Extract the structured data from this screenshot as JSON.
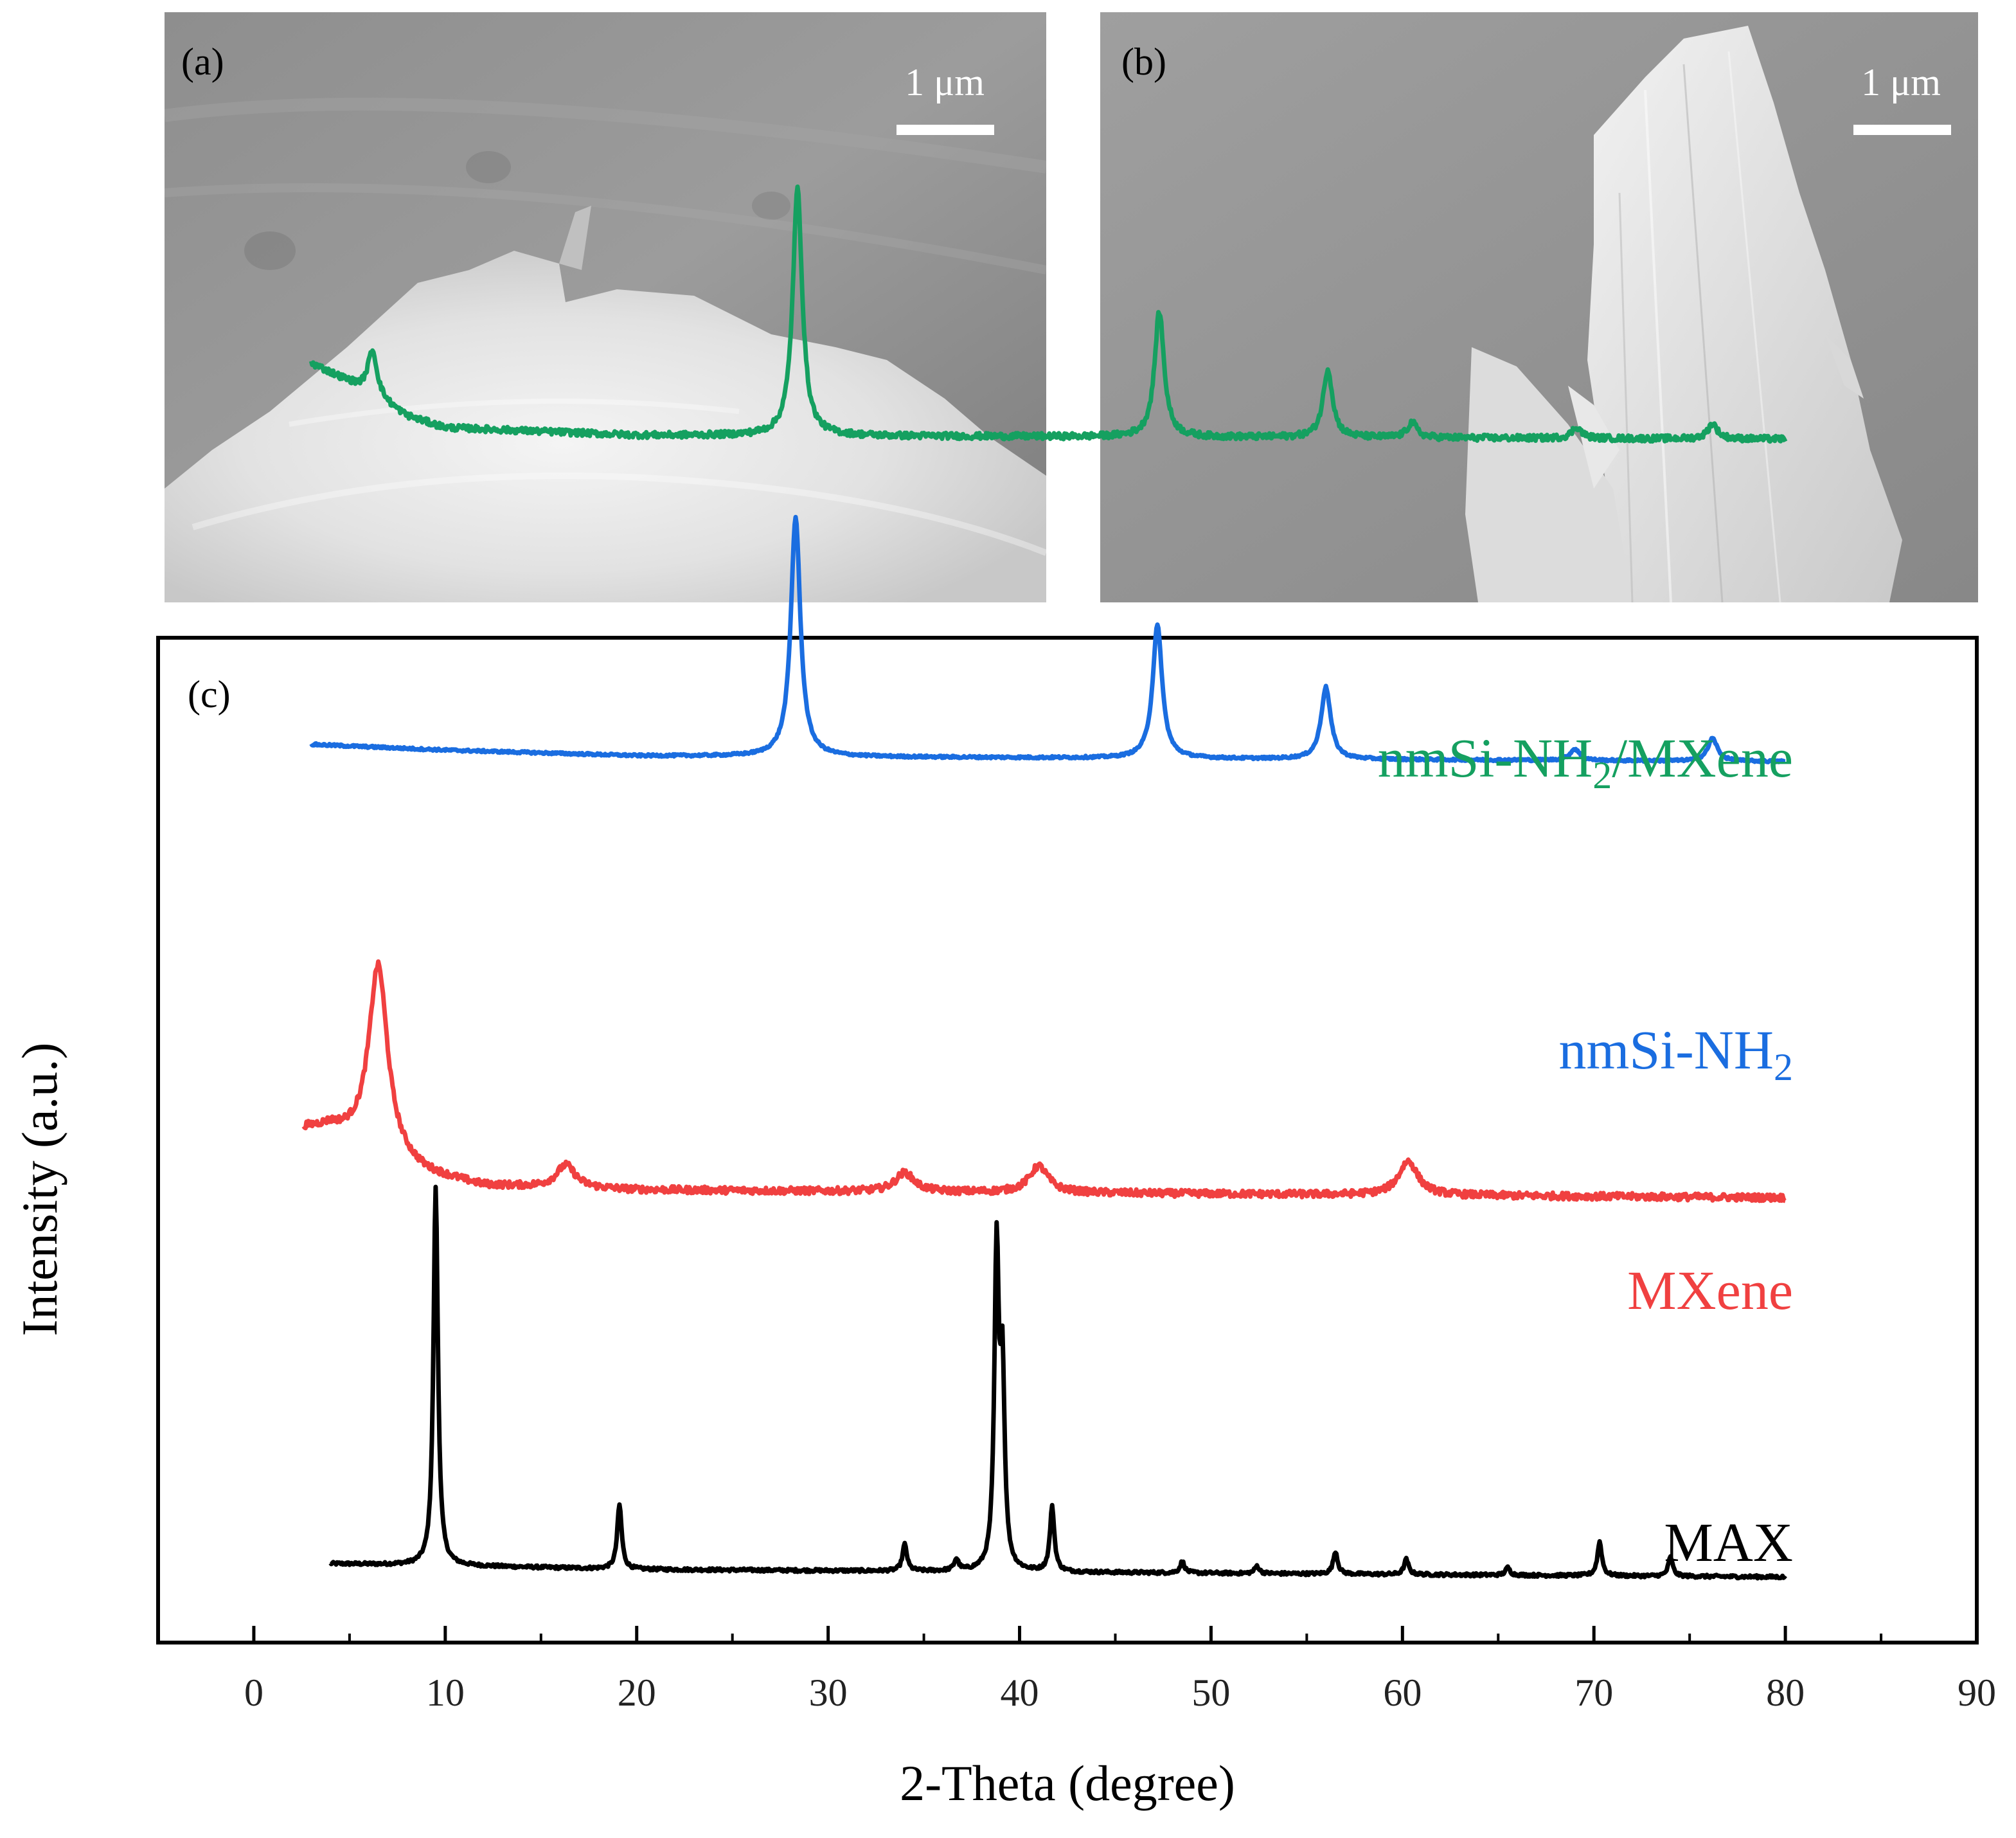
{
  "panels": {
    "a": {
      "label": "(a)",
      "scale_bar": "1 μm"
    },
    "b": {
      "label": "(b)",
      "scale_bar": "1 μm"
    },
    "c": {
      "label": "(c)"
    }
  },
  "colors": {
    "max": "#000000",
    "mxene": "#f04040",
    "nmsi": "#1a6de0",
    "composite": "#15a060"
  },
  "chart_data": {
    "type": "line",
    "panel_label": "(c)",
    "title": "",
    "xlabel": "2-Theta (degree)",
    "ylabel": "Intensity (a.u.)",
    "xlim": [
      -5,
      90
    ],
    "xticks": [
      0,
      10,
      20,
      30,
      40,
      50,
      60,
      70,
      80,
      90
    ],
    "xtick_labels": [
      "0",
      "10",
      "20",
      "30",
      "40",
      "50",
      "60",
      "70",
      "80",
      "90"
    ],
    "y_units": "arbitrary, stacked with offsets",
    "grid": false,
    "legend": "inline text labels at the right end of each trace",
    "series": [
      {
        "name": "MAX",
        "label_main": "MAX",
        "label_sub": "",
        "label_tail": "",
        "color": "#000000",
        "offset": 0.0,
        "noise": 0.004,
        "peak_width": 0.14,
        "x_start": 4,
        "x_end": 80,
        "baseline": [
          [
            4,
            0.035
          ],
          [
            10,
            0.03
          ],
          [
            20,
            0.02
          ],
          [
            80,
            0.0
          ]
        ],
        "peaks": [
          [
            9.5,
            1.0
          ],
          [
            19.1,
            0.17
          ],
          [
            34.0,
            0.07
          ],
          [
            36.7,
            0.03
          ],
          [
            38.8,
            0.83
          ],
          [
            39.1,
            0.5
          ],
          [
            41.7,
            0.17
          ],
          [
            48.5,
            0.03
          ],
          [
            52.4,
            0.02
          ],
          [
            56.5,
            0.06
          ],
          [
            60.2,
            0.04
          ],
          [
            65.5,
            0.02
          ],
          [
            70.3,
            0.09
          ],
          [
            74.0,
            0.05
          ]
        ]
      },
      {
        "name": "MXene",
        "label_main": "MXene",
        "label_sub": "",
        "label_tail": "",
        "color": "#f04040",
        "offset": 1.0,
        "noise": 0.009,
        "peak_width": 0.6,
        "x_start": 2.6,
        "x_end": 80,
        "baseline": [
          [
            2.6,
            0.18
          ],
          [
            4,
            0.18
          ],
          [
            7,
            0.1
          ],
          [
            9,
            0.06
          ],
          [
            12,
            0.03
          ],
          [
            20,
            0.02
          ],
          [
            80,
            0.0
          ]
        ],
        "peaks": [
          [
            6.5,
            0.5
          ],
          [
            16.3,
            0.06
          ],
          [
            34.0,
            0.05
          ],
          [
            41.0,
            0.07
          ],
          [
            60.3,
            0.09
          ]
        ]
      },
      {
        "name": "nmSi-NH2",
        "label_main": "nmSi-NH",
        "label_sub": "2",
        "label_tail": "",
        "color": "#1a6de0",
        "offset": 2.15,
        "noise": 0.003,
        "peak_width": 0.3,
        "x_start": 3,
        "x_end": 80,
        "baseline": [
          [
            3,
            0.045
          ],
          [
            10,
            0.03
          ],
          [
            20,
            0.015
          ],
          [
            80,
            0.0
          ]
        ],
        "peaks": [
          [
            28.3,
            0.63
          ],
          [
            47.2,
            0.35
          ],
          [
            56.0,
            0.19
          ],
          [
            69.0,
            0.03
          ],
          [
            76.2,
            0.06
          ]
        ]
      },
      {
        "name": "nmSi-NH2/MXene",
        "label_main": "nmSi-NH",
        "label_sub": "2",
        "label_tail": "/MXene",
        "color": "#15a060",
        "offset": 3.0,
        "noise": 0.008,
        "peak_width": 0.3,
        "x_start": 3,
        "x_end": 80,
        "baseline": [
          [
            3,
            0.2
          ],
          [
            5,
            0.15
          ],
          [
            8,
            0.06
          ],
          [
            10,
            0.03
          ],
          [
            20,
            0.01
          ],
          [
            80,
            0.0
          ]
        ],
        "peaks": [
          [
            6.2,
            0.12
          ],
          [
            28.4,
            0.65
          ],
          [
            47.3,
            0.33
          ],
          [
            56.1,
            0.18
          ],
          [
            60.5,
            0.04
          ],
          [
            69.1,
            0.03
          ],
          [
            76.2,
            0.04
          ]
        ]
      }
    ]
  }
}
